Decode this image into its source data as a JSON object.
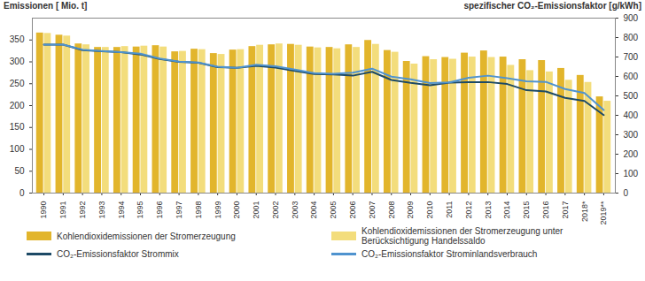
{
  "chart_data": {
    "type": "bar",
    "y_label": "Emissionen [ Mio. t]",
    "y2_label": "spezifischer CO₂-Emissionsfaktor [g/kWh]",
    "categories": [
      "1990",
      "1991",
      "1992",
      "1993",
      "1994",
      "1995",
      "1996",
      "1997",
      "1998",
      "1999",
      "2000",
      "2001",
      "2002",
      "2003",
      "2004",
      "2005",
      "2006",
      "2007",
      "2008",
      "2009",
      "2010",
      "2011",
      "2012",
      "2013",
      "2014",
      "2015",
      "2016",
      "2017",
      "2018*",
      "2019**"
    ],
    "series": [
      {
        "name": "Kohlendioxidemissionen der Stromerzeugung",
        "type": "bar",
        "color": "#e2b52c",
        "values": [
          366,
          361,
          341,
          333,
          333,
          334,
          337,
          323,
          329,
          319,
          327,
          335,
          339,
          340,
          334,
          333,
          339,
          349,
          326,
          301,
          312,
          310,
          320,
          325,
          311,
          305,
          303,
          285,
          269,
          220
        ]
      },
      {
        "name": "Kohlendioxidemissionen der Stromerzeugung unter Berücksichtigung Handelssaldo",
        "type": "bar",
        "color": "#f3dd7c",
        "values": [
          365,
          359,
          339,
          333,
          335,
          336,
          334,
          324,
          328,
          317,
          328,
          338,
          341,
          338,
          332,
          330,
          333,
          340,
          322,
          295,
          305,
          306,
          311,
          310,
          292,
          280,
          277,
          258,
          253,
          210
        ]
      },
      {
        "name": "CO₂-Emissionsfaktor Strommix",
        "type": "line",
        "axis": "y2",
        "color": "#1d4a66",
        "values": [
          764,
          764,
          735,
          730,
          725,
          713,
          690,
          675,
          670,
          648,
          644,
          654,
          645,
          628,
          612,
          610,
          604,
          624,
          582,
          567,
          555,
          568,
          571,
          571,
          561,
          529,
          523,
          490,
          474,
          401
        ]
      },
      {
        "name": "CO₂-Emissionsfaktor Strominlandsverbrauch",
        "type": "line",
        "axis": "y2",
        "color": "#4f93cf",
        "values": [
          764,
          764,
          738,
          731,
          725,
          717,
          692,
          676,
          672,
          650,
          644,
          660,
          652,
          635,
          617,
          614,
          619,
          640,
          599,
          585,
          566,
          569,
          593,
          604,
          591,
          575,
          572,
          535,
          515,
          427
        ]
      }
    ],
    "ylim": [
      0,
      400
    ],
    "yticks": [
      0,
      50,
      100,
      150,
      200,
      250,
      300,
      350
    ],
    "y2lim": [
      0,
      900
    ],
    "y2ticks": [
      0,
      100,
      200,
      300,
      400,
      500,
      600,
      700,
      800,
      900
    ],
    "grid": false,
    "legend": "bottom"
  }
}
